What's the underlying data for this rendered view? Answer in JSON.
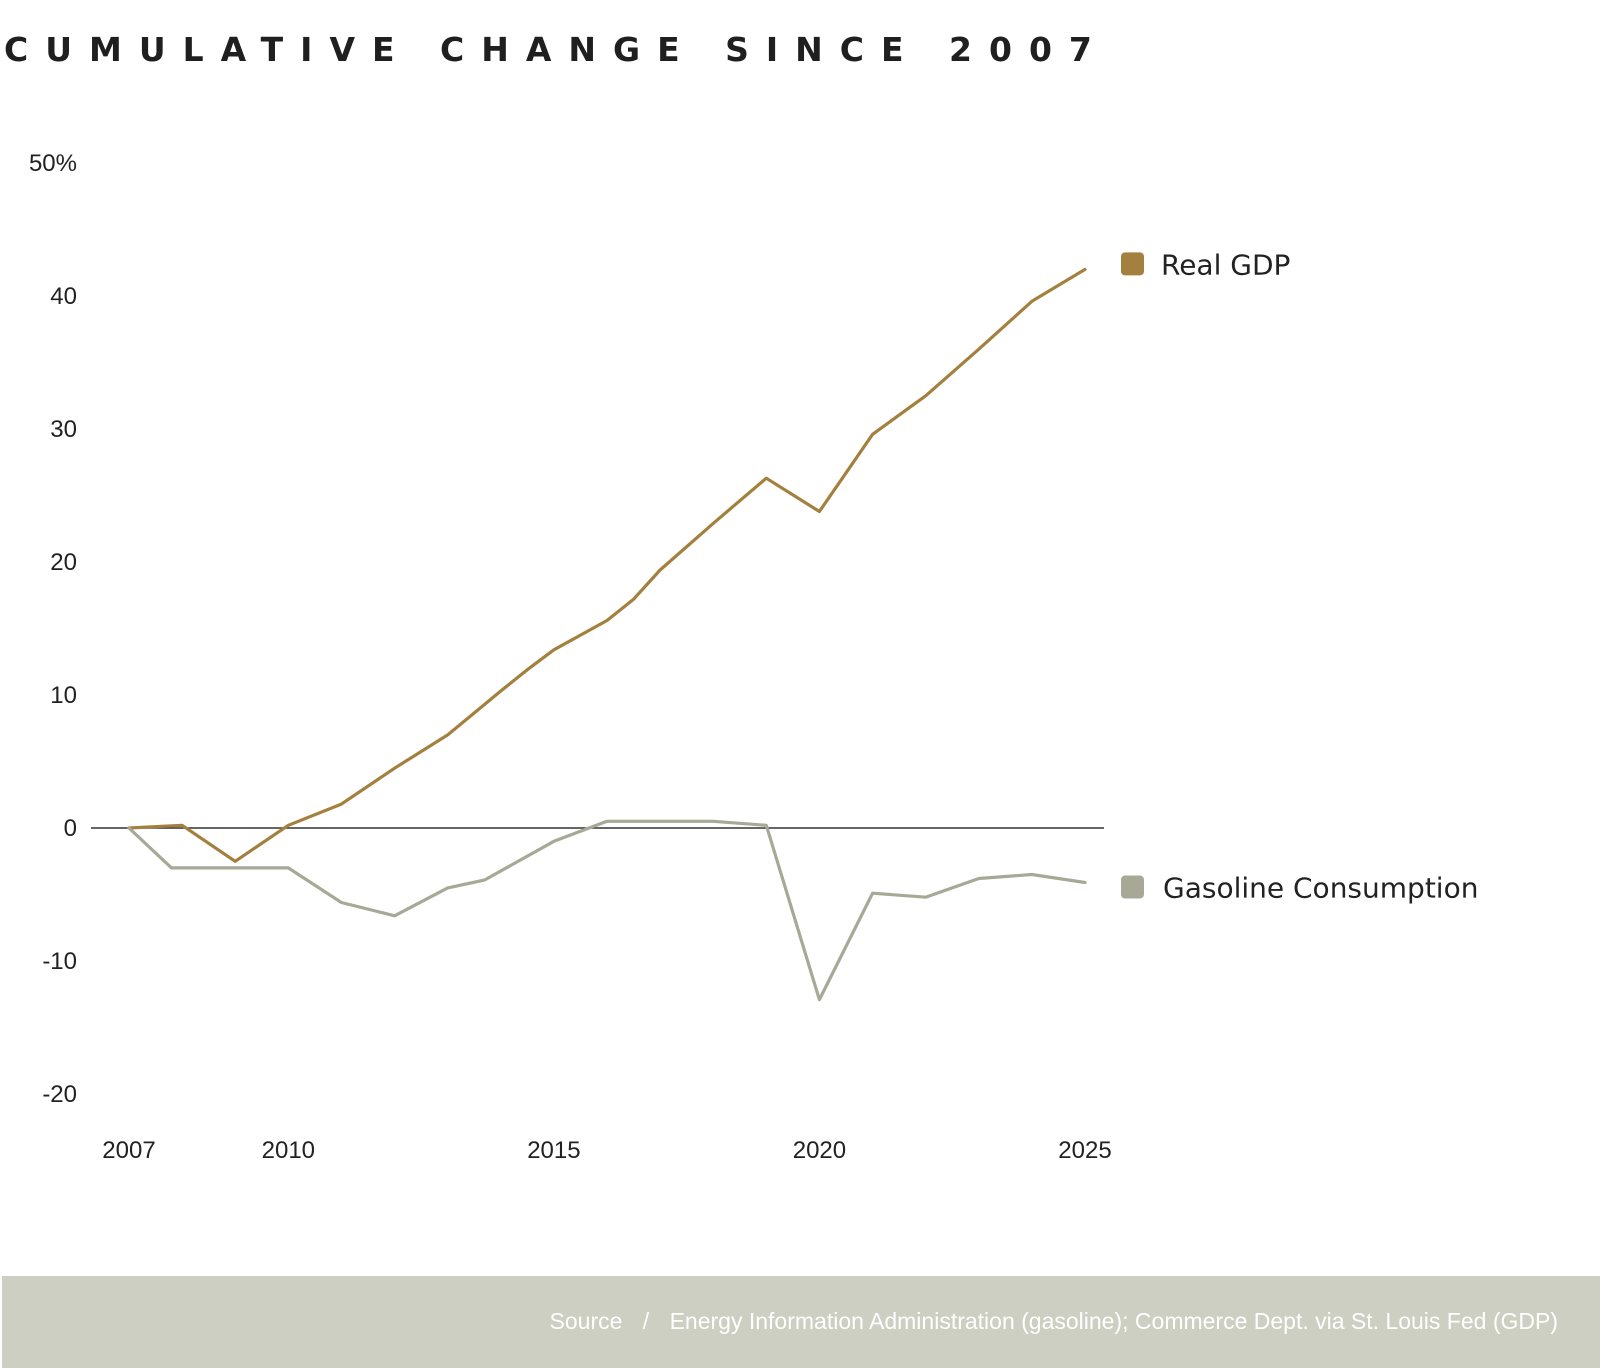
{
  "chart_data": {
    "type": "line",
    "title": "CUMULATIVE CHANGE SINCE 2007",
    "xlabel": "",
    "ylabel": "",
    "xlim": [
      2007,
      2025
    ],
    "ylim": [
      -20,
      50
    ],
    "x_ticks": [
      {
        "value": 2007,
        "label": "2007"
      },
      {
        "value": 2010,
        "label": "2010"
      },
      {
        "value": 2015,
        "label": "2015"
      },
      {
        "value": 2020,
        "label": "2020"
      },
      {
        "value": 2025,
        "label": "2025"
      }
    ],
    "y_ticks": [
      {
        "value": 50,
        "label": "50%"
      },
      {
        "value": 40,
        "label": "40"
      },
      {
        "value": 30,
        "label": "30"
      },
      {
        "value": 20,
        "label": "20"
      },
      {
        "value": 10,
        "label": "10"
      },
      {
        "value": 0,
        "label": "0"
      },
      {
        "value": -10,
        "label": "-10"
      },
      {
        "value": -20,
        "label": "-20"
      }
    ],
    "zero_line": true,
    "grid": false,
    "legend": "inline-right",
    "series": [
      {
        "name": "Real GDP",
        "color": "#a4803f",
        "points": [
          [
            2007,
            0.0
          ],
          [
            2008,
            0.2
          ],
          [
            2009,
            -2.5
          ],
          [
            2010,
            0.2
          ],
          [
            2011,
            1.8
          ],
          [
            2012,
            4.5
          ],
          [
            2013,
            7.0
          ],
          [
            2014,
            10.3
          ],
          [
            2014.5,
            11.9
          ],
          [
            2015,
            13.4
          ],
          [
            2016,
            15.6
          ],
          [
            2016.5,
            17.2
          ],
          [
            2017,
            19.4
          ],
          [
            2018,
            22.9
          ],
          [
            2019,
            26.3
          ],
          [
            2020,
            23.8
          ],
          [
            2021,
            29.6
          ],
          [
            2022,
            32.5
          ],
          [
            2023,
            36.0
          ],
          [
            2024,
            39.6
          ],
          [
            2025,
            42.0
          ]
        ]
      },
      {
        "name": "Gasoline Consumption",
        "color": "#a7a996",
        "points": [
          [
            2007,
            0.0
          ],
          [
            2007.8,
            -3.0
          ],
          [
            2009,
            -3.0
          ],
          [
            2010,
            -3.0
          ],
          [
            2011,
            -5.6
          ],
          [
            2012,
            -6.6
          ],
          [
            2013,
            -4.5
          ],
          [
            2013.7,
            -3.9
          ],
          [
            2015,
            -1.0
          ],
          [
            2016,
            0.5
          ],
          [
            2017,
            0.5
          ],
          [
            2018,
            0.5
          ],
          [
            2019,
            0.2
          ],
          [
            2020,
            -12.9
          ],
          [
            2021,
            -4.9
          ],
          [
            2022,
            -5.2
          ],
          [
            2023,
            -3.8
          ],
          [
            2024,
            -3.5
          ],
          [
            2025,
            -4.1
          ]
        ]
      }
    ],
    "source": "Energy Information Administration (gasoline); Commerce Dept. via St. Louis Fed (GDP)"
  },
  "source_bar": {
    "label": "Source",
    "separator": "/",
    "text": "Energy Information Administration (gasoline); Commerce Dept. via St. Louis Fed (GDP)"
  }
}
